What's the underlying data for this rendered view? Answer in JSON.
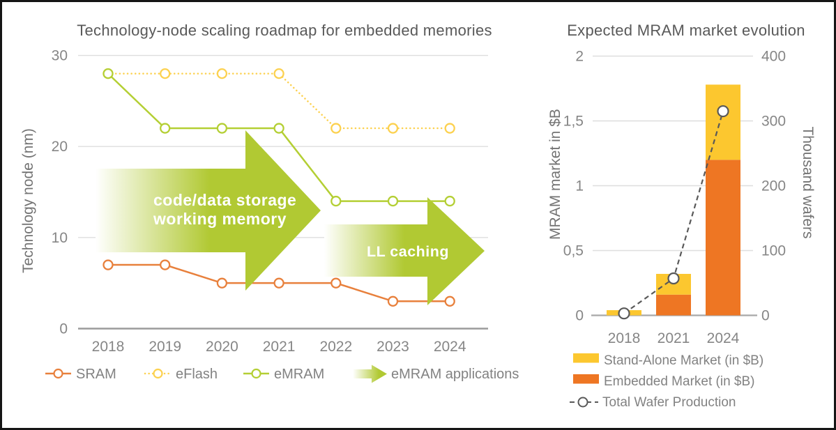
{
  "frame": {
    "background": "#ffffff",
    "border_color": "#151515"
  },
  "chart_data": [
    {
      "type": "line",
      "title": "Technology-node scaling roadmap for embedded memories",
      "ylabel": "Technology node (nm)",
      "xlabel": "",
      "x_categories": [
        "2018",
        "2019",
        "2020",
        "2021",
        "2022",
        "2023",
        "2024"
      ],
      "ylim": [
        0,
        30
      ],
      "grid": "horizontal",
      "y_ticks": [
        {
          "v": 30,
          "label": "30"
        },
        {
          "v": 20,
          "label": "20"
        },
        {
          "v": 10,
          "label": "10"
        },
        {
          "v": 0,
          "label": "0"
        }
      ],
      "series": [
        {
          "name": "SRAM",
          "color": "#e8803c",
          "line_style": "solid",
          "values": [
            7,
            7,
            5,
            5,
            5,
            3,
            3
          ]
        },
        {
          "name": "eFlash",
          "color": "#fcd14f",
          "line_style": "dotted",
          "values": [
            28,
            28,
            28,
            28,
            22,
            22,
            22
          ]
        },
        {
          "name": "eMRAM",
          "color": "#b4cf34",
          "line_style": "solid",
          "values": [
            28,
            22,
            22,
            22,
            14,
            14,
            14
          ]
        }
      ],
      "annotations": [
        {
          "name": "emram-applications-arrow-1",
          "color": "#b1c933",
          "label_lines": [
            "code/data storage",
            "working memory"
          ]
        },
        {
          "name": "emram-applications-arrow-2",
          "color": "#b1c933",
          "label_lines": [
            "LL caching"
          ]
        }
      ],
      "legend": [
        {
          "label": "SRAM",
          "marker": "line-circle",
          "style": "solid",
          "color": "#e8803c"
        },
        {
          "label": "eFlash",
          "marker": "line-circle",
          "style": "dotted",
          "color": "#fcd14f"
        },
        {
          "label": "eMRAM",
          "marker": "line-circle",
          "style": "solid",
          "color": "#b4cf34"
        },
        {
          "label": "eMRAM applications",
          "marker": "arrow",
          "color": "#b1c933"
        }
      ],
      "legend_position": "bottom"
    },
    {
      "type": "bar",
      "title": "Expected MRAM market evolution",
      "ylabel": "MRAM market in $B",
      "y2label": "Thousand wafers",
      "categories": [
        "2018",
        "2021",
        "2024"
      ],
      "ylim": [
        0,
        2
      ],
      "y2lim": [
        0,
        400
      ],
      "grid": "horizontal",
      "y_ticks": [
        {
          "v": 2,
          "label": "2"
        },
        {
          "v": 1.5,
          "label": "1,5"
        },
        {
          "v": 1,
          "label": "1"
        },
        {
          "v": 0.5,
          "label": "0,5"
        },
        {
          "v": 0,
          "label": "0"
        }
      ],
      "y2_ticks": [
        {
          "v": 400,
          "label": "400"
        },
        {
          "v": 300,
          "label": "300"
        },
        {
          "v": 200,
          "label": "200"
        },
        {
          "v": 100,
          "label": "100"
        },
        {
          "v": 0,
          "label": "0"
        }
      ],
      "series": [
        {
          "name": "Embedded Market (in $B)",
          "color": "#ee7623",
          "stack_order": "bottom",
          "values": [
            0,
            0.16,
            1.2
          ]
        },
        {
          "name": "Stand-Alone Market (in $B)",
          "color": "#fcc72f",
          "stack_order": "top",
          "values": [
            0.04,
            0.16,
            0.58
          ]
        }
      ],
      "line_series": {
        "name": "Total Wafer Production",
        "axis": "y2",
        "color": "#595959",
        "style": "dashed",
        "values": [
          3,
          57,
          315
        ]
      },
      "legend": [
        {
          "label": "Stand-Alone Market (in $B)",
          "marker": "swatch",
          "color": "#fcc72f"
        },
        {
          "label": "Embedded Market (in $B)",
          "marker": "swatch",
          "color": "#ee7623"
        },
        {
          "label": "Total Wafer Production",
          "marker": "dashed-circle",
          "color": "#595959"
        }
      ],
      "legend_position": "bottom"
    }
  ]
}
